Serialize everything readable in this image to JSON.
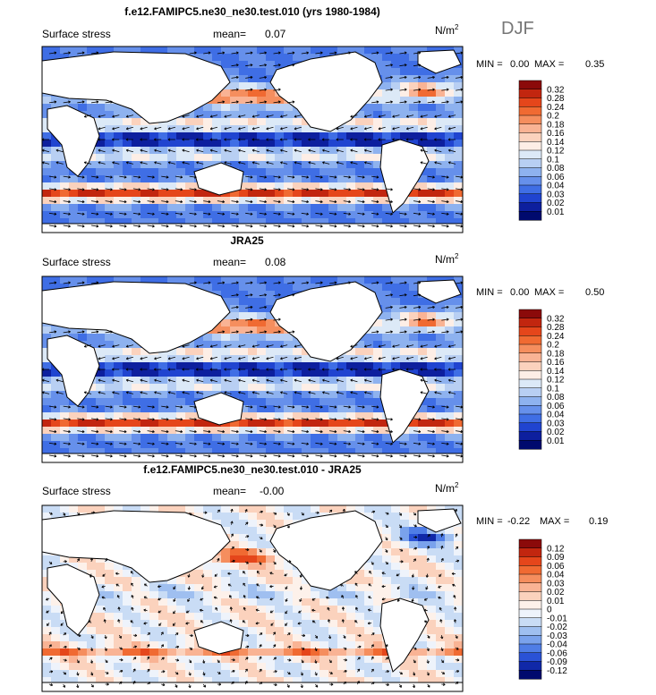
{
  "season": "DJF",
  "panels": [
    {
      "id": "model",
      "title": "f.e12.FAMIPC5.ne30_ne30.test.010 (yrs 1980-1984)",
      "variable": "Surface stress",
      "mean_label": "mean=",
      "mean_value": "0.07",
      "units": "N/m",
      "units_sup": "2",
      "min_label": "MIN =",
      "min_value": "0.00",
      "max_label": "MAX =",
      "max_value": "0.35",
      "colorbar_labels": [
        "0.32",
        "0.28",
        "0.24",
        "0.2",
        "0.18",
        "0.16",
        "0.14",
        "0.12",
        "0.1",
        "0.08",
        "0.06",
        "0.04",
        "0.03",
        "0.02",
        "0.01"
      ],
      "colorbar_colors": [
        "#8b0a0a",
        "#c2260f",
        "#e5461b",
        "#f06a32",
        "#f58e5e",
        "#f9b394",
        "#fbd2bd",
        "#fdeee6",
        "#dce9f7",
        "#b8cff3",
        "#8eb2ef",
        "#6690eb",
        "#3f6ee5",
        "#2044d0",
        "#0d1f9e",
        "#000a6e"
      ],
      "field_style": "mean"
    },
    {
      "id": "obs",
      "title": "JRA25",
      "variable": "Surface stress",
      "mean_label": "mean=",
      "mean_value": "0.08",
      "units": "N/m",
      "units_sup": "2",
      "min_label": "MIN =",
      "min_value": "0.00",
      "max_label": "MAX =",
      "max_value": "0.50",
      "colorbar_labels": [
        "0.32",
        "0.28",
        "0.24",
        "0.2",
        "0.18",
        "0.16",
        "0.14",
        "0.12",
        "0.1",
        "0.08",
        "0.06",
        "0.04",
        "0.03",
        "0.02",
        "0.01"
      ],
      "colorbar_colors": [
        "#8b0a0a",
        "#c2260f",
        "#e5461b",
        "#f06a32",
        "#f58e5e",
        "#f9b394",
        "#fbd2bd",
        "#fdeee6",
        "#dce9f7",
        "#b8cff3",
        "#8eb2ef",
        "#6690eb",
        "#3f6ee5",
        "#2044d0",
        "#0d1f9e",
        "#000a6e"
      ],
      "field_style": "mean"
    },
    {
      "id": "diff",
      "title": "f.e12.FAMIPC5.ne30_ne30.test.010 - JRA25",
      "variable": "Surface stress",
      "mean_label": "mean=",
      "mean_value": "-0.00",
      "units": "N/m",
      "units_sup": "2",
      "min_label": "MIN =",
      "min_value": "-0.22",
      "max_label": "MAX =",
      "max_value": "0.19",
      "colorbar_labels": [
        "0.12",
        "0.09",
        "0.06",
        "0.04",
        "0.03",
        "0.02",
        "0.01",
        "0",
        "-0.01",
        "-0.02",
        "-0.03",
        "-0.04",
        "-0.06",
        "-0.09",
        "-0.12"
      ],
      "colorbar_colors": [
        "#8b0a0a",
        "#c2260f",
        "#e5461b",
        "#f06a32",
        "#f58e5e",
        "#f9b394",
        "#fbd2bd",
        "#fdf1ea",
        "#eef3fb",
        "#c9dcf5",
        "#9fbff0",
        "#7aa2ec",
        "#4f7de6",
        "#2a52d6",
        "#1028a8",
        "#000a6e"
      ],
      "field_style": "diff"
    }
  ],
  "chart_data": [
    {
      "type": "heatmap",
      "title": "f.e12.FAMIPC5.ne30_ne30.test.010 (yrs 1980-1984)",
      "subtitle": "Surface stress",
      "units": "N/m2",
      "mean": 0.07,
      "min": 0.0,
      "max": 0.35,
      "colorbar_levels": [
        0.01,
        0.02,
        0.03,
        0.04,
        0.06,
        0.08,
        0.1,
        0.12,
        0.14,
        0.16,
        0.18,
        0.2,
        0.24,
        0.28,
        0.32
      ],
      "overlay": "wind stress vectors"
    },
    {
      "type": "heatmap",
      "title": "JRA25",
      "subtitle": "Surface stress",
      "units": "N/m2",
      "mean": 0.08,
      "min": 0.0,
      "max": 0.5,
      "colorbar_levels": [
        0.01,
        0.02,
        0.03,
        0.04,
        0.06,
        0.08,
        0.1,
        0.12,
        0.14,
        0.16,
        0.18,
        0.2,
        0.24,
        0.28,
        0.32
      ],
      "overlay": "wind stress vectors"
    },
    {
      "type": "heatmap",
      "title": "f.e12.FAMIPC5.ne30_ne30.test.010 - JRA25",
      "subtitle": "Surface stress",
      "units": "N/m2",
      "mean": -0.0,
      "min": -0.22,
      "max": 0.19,
      "colorbar_levels": [
        -0.12,
        -0.09,
        -0.06,
        -0.04,
        -0.03,
        -0.02,
        -0.01,
        0,
        0.01,
        0.02,
        0.03,
        0.04,
        0.06,
        0.09,
        0.12
      ],
      "overlay": "wind stress difference vectors"
    }
  ]
}
